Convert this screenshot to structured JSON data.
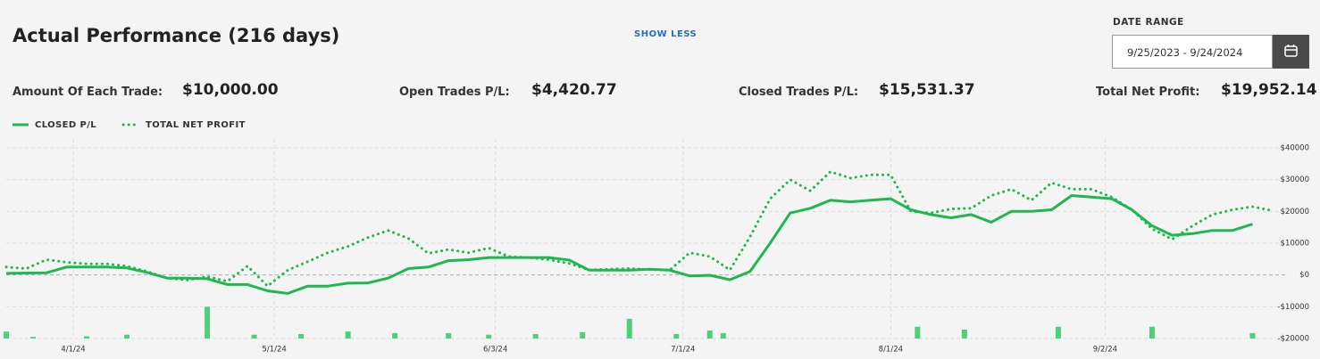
{
  "header": {
    "title": "Actual Performance (216 days)",
    "toggle": "SHOW LESS"
  },
  "date_range": {
    "label": "DATE RANGE",
    "value": "9/25/2023 - 9/24/2024"
  },
  "stats": [
    {
      "label": "Amount Of Each Trade:",
      "value": "$10,000.00"
    },
    {
      "label": "Open Trades P/L:",
      "value": "$4,420.77"
    },
    {
      "label": "Closed Trades P/L:",
      "value": "$15,531.37"
    },
    {
      "label": "Total Net Profit:",
      "value": "$19,952.14"
    }
  ],
  "chart_data": {
    "type": "line",
    "x": [
      "2024-03-22",
      "2024-03-25",
      "2024-03-28",
      "2024-03-31",
      "2024-04-03",
      "2024-04-06",
      "2024-04-09",
      "2024-04-12",
      "2024-04-15",
      "2024-04-18",
      "2024-04-21",
      "2024-04-24",
      "2024-04-27",
      "2024-04-30",
      "2024-05-03",
      "2024-05-06",
      "2024-05-09",
      "2024-05-12",
      "2024-05-15",
      "2024-05-18",
      "2024-05-21",
      "2024-05-24",
      "2024-05-27",
      "2024-05-30",
      "2024-06-02",
      "2024-06-05",
      "2024-06-08",
      "2024-06-11",
      "2024-06-14",
      "2024-06-17",
      "2024-06-20",
      "2024-06-23",
      "2024-06-26",
      "2024-06-29",
      "2024-07-02",
      "2024-07-05",
      "2024-07-08",
      "2024-07-11",
      "2024-07-14",
      "2024-07-17",
      "2024-07-20",
      "2024-07-23",
      "2024-07-26",
      "2024-07-29",
      "2024-08-01",
      "2024-08-04",
      "2024-08-07",
      "2024-08-10",
      "2024-08-13",
      "2024-08-16",
      "2024-08-19",
      "2024-08-22",
      "2024-08-25",
      "2024-08-28",
      "2024-08-31",
      "2024-09-03",
      "2024-09-06",
      "2024-09-09",
      "2024-09-12",
      "2024-09-15",
      "2024-09-18",
      "2024-09-21",
      "2024-09-24",
      "2024-09-27"
    ],
    "series": [
      {
        "name": "CLOSED P/L",
        "color": "#1fb84f",
        "style": "solid",
        "values": [
          500,
          600,
          700,
          2500,
          2500,
          2500,
          2200,
          800,
          -1000,
          -1000,
          -1200,
          -3000,
          -3000,
          -5000,
          -5800,
          -3500,
          -3500,
          -2600,
          -2500,
          -1000,
          2000,
          2500,
          4500,
          4800,
          5500,
          5500,
          5500,
          5500,
          4700,
          1500,
          1500,
          1500,
          1800,
          1500,
          -300,
          -100,
          -1500,
          1100,
          10000,
          19500,
          21000,
          23500,
          23000,
          23500,
          24000,
          20500,
          19000,
          18000,
          19000,
          16600,
          20000,
          20000,
          20500,
          25000,
          24500,
          24000,
          20500,
          15500,
          12500,
          13000,
          14000,
          14000,
          16000,
          null
        ]
      },
      {
        "name": "TOTAL NET PROFIT",
        "color": "#1fb84f",
        "style": "dotted",
        "values": [
          2500,
          2000,
          4800,
          4000,
          3500,
          3500,
          2800,
          1100,
          -1000,
          -1600,
          -500,
          -2000,
          2800,
          -3500,
          1500,
          4200,
          7000,
          9000,
          11800,
          14000,
          11500,
          6800,
          8000,
          7000,
          8500,
          5800,
          5500,
          4800,
          3600,
          1600,
          1800,
          2000,
          1700,
          1500,
          7000,
          5800,
          1600,
          12000,
          24000,
          30000,
          26500,
          32500,
          30500,
          31500,
          31500,
          20000,
          19500,
          20800,
          21000,
          25000,
          27000,
          23500,
          29000,
          27000,
          27000,
          24500,
          20500,
          14500,
          11200,
          15400,
          19000,
          20500,
          21500,
          20200
        ]
      }
    ],
    "bars": {
      "color": "#4cd07a",
      "x": [
        "2024-03-22",
        "2024-03-26",
        "2024-04-03",
        "2024-04-09",
        "2024-04-21",
        "2024-04-28",
        "2024-05-05",
        "2024-05-12",
        "2024-05-19",
        "2024-05-27",
        "2024-06-02",
        "2024-06-09",
        "2024-06-16",
        "2024-06-23",
        "2024-06-30",
        "2024-07-05",
        "2024-07-07",
        "2024-08-05",
        "2024-08-12",
        "2024-08-26",
        "2024-09-09",
        "2024-09-24"
      ],
      "values": [
        -17800,
        -19500,
        -19300,
        -18800,
        -10000,
        -18800,
        -18600,
        -17800,
        -18300,
        -18300,
        -18800,
        -18600,
        -18000,
        -13800,
        -18600,
        -17500,
        -18300,
        -16300,
        -17200,
        -16300,
        -16300,
        -18300
      ]
    },
    "xlim": [
      "2024-03-22",
      "2024-09-29"
    ],
    "xticks": [
      {
        "value": "2024-04-01",
        "label": "4/1/24"
      },
      {
        "value": "2024-05-01",
        "label": "5/1/24"
      },
      {
        "value": "2024-06-03",
        "label": "6/3/24"
      },
      {
        "value": "2024-07-01",
        "label": "7/1/24"
      },
      {
        "value": "2024-08-01",
        "label": "8/1/24"
      },
      {
        "value": "2024-09-02",
        "label": "9/2/24"
      }
    ],
    "ylim": [
      -20000,
      40000
    ],
    "yticks": [
      {
        "value": -20000,
        "label": "-$20000"
      },
      {
        "value": -10000,
        "label": "-$10000"
      },
      {
        "value": 0,
        "label": "$0"
      },
      {
        "value": 10000,
        "label": "$10000"
      },
      {
        "value": 20000,
        "label": "$20000"
      },
      {
        "value": 30000,
        "label": "$30000"
      },
      {
        "value": 40000,
        "label": "$40000"
      }
    ],
    "grid": true
  }
}
